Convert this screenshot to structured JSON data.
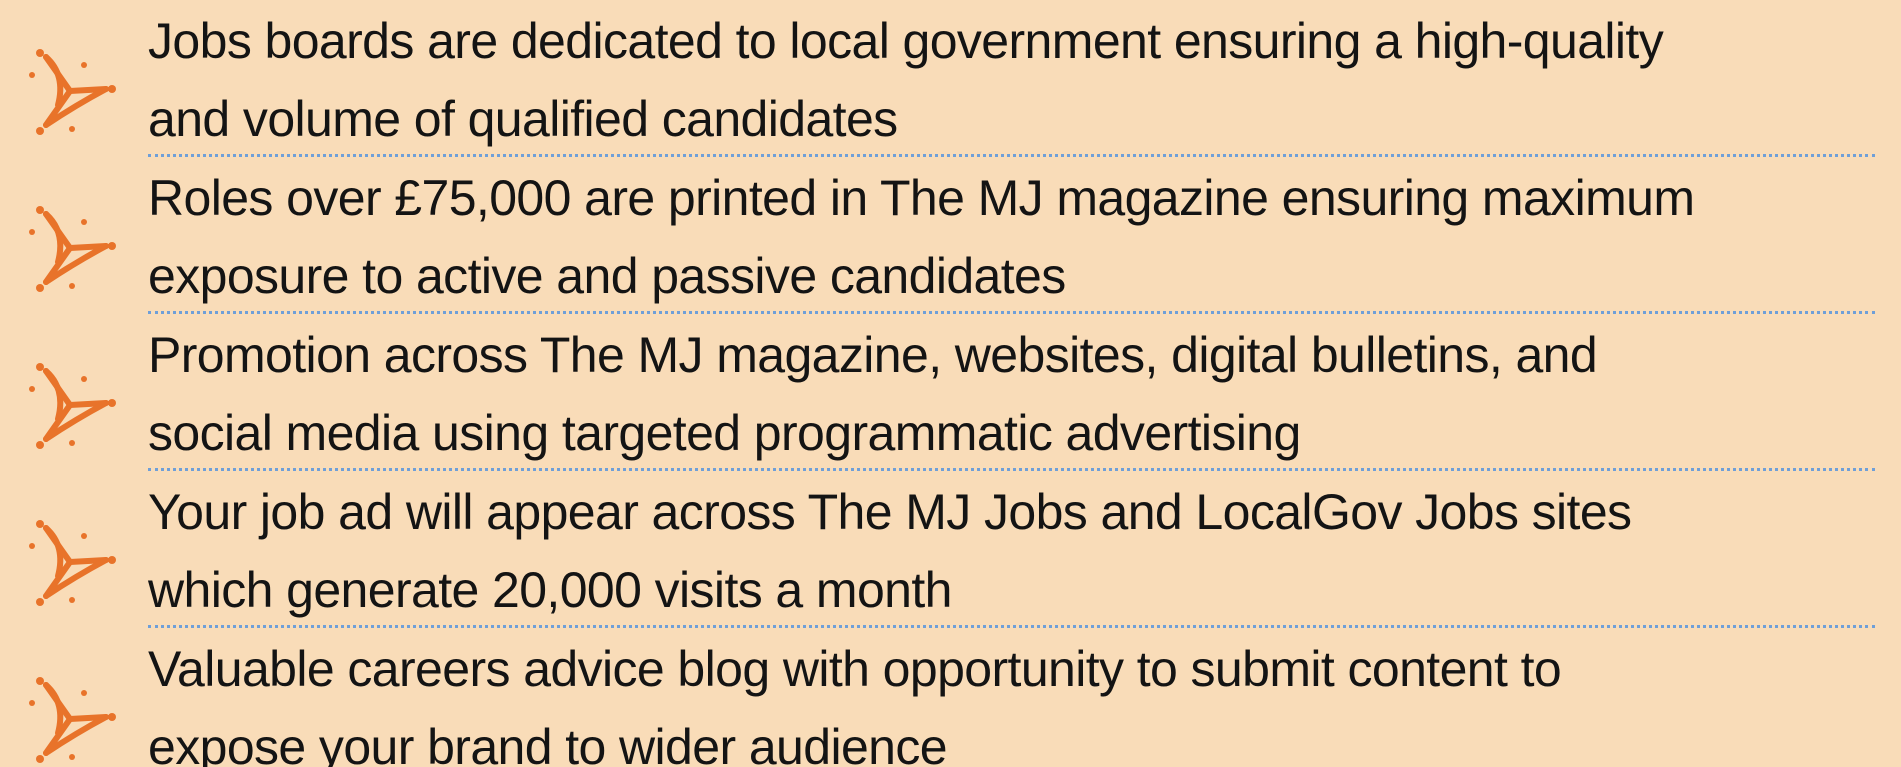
{
  "items": [
    {
      "lines": [
        "Jobs boards are dedicated to local government ensuring a high-quality",
        "and volume of qualified candidates"
      ]
    },
    {
      "lines": [
        "Roles over £75,000 are printed in The MJ magazine ensuring maximum",
        "exposure to active and passive candidates"
      ]
    },
    {
      "lines": [
        "Promotion across The MJ magazine, websites, digital bulletins, and",
        "social media using targeted programmatic advertising"
      ]
    },
    {
      "lines": [
        "Your job ad will appear across The MJ Jobs and LocalGov Jobs sites",
        "which generate 20,000 visits a month"
      ]
    },
    {
      "lines": [
        "Valuable careers advice blog with opportunity to submit content to",
        "expose your brand to wider audience"
      ]
    }
  ]
}
